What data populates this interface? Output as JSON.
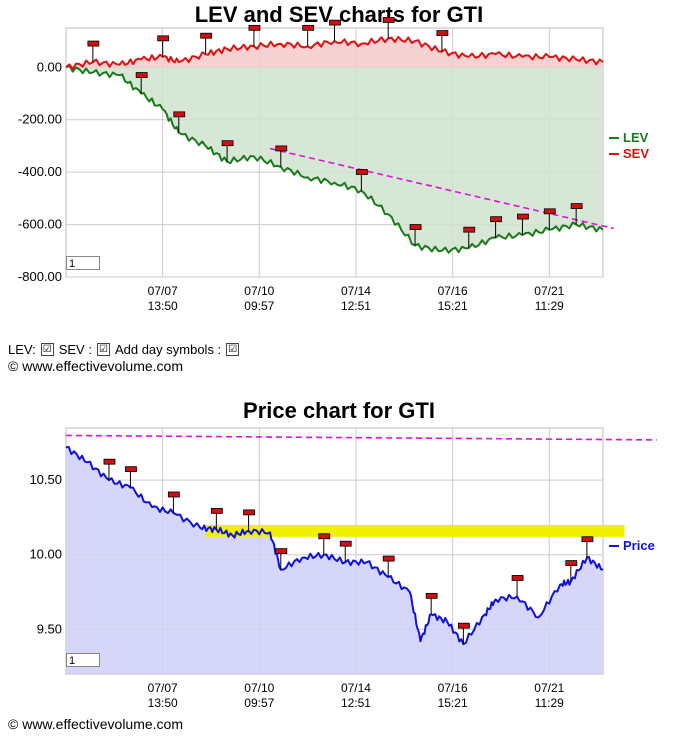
{
  "top_chart": {
    "title": "LEV and SEV charts for GTI",
    "zoom_value": "1"
  },
  "controls": {
    "lev_label": "LEV:",
    "sev_label": "SEV :",
    "day_symbols_label": "Add day symbols :",
    "lev_checked": "☑",
    "sev_checked": "☑",
    "day_checked": "☑"
  },
  "copyright_top": "© www.effectivevolume.com",
  "copyright_bottom": "© www.effectivevolume.com",
  "bottom_chart": {
    "title": "Price chart for GTI",
    "zoom_value": "1"
  },
  "colors": {
    "lev": "#1a7a1a",
    "lev_fill": "#cfe3cf",
    "sev": "#e01010",
    "sev_fill": "#f5c9c9",
    "trend": "#e010e0",
    "price": "#1010e0",
    "price_fill": "#cfd0f7",
    "band": "#f0f000",
    "marker": "#d01010"
  },
  "chart_data": [
    {
      "type": "line",
      "title": "LEV and SEV charts for GTI",
      "x_tick_labels": [
        [
          "07/07",
          "13:50"
        ],
        [
          "07/10",
          "09:57"
        ],
        [
          "07/14",
          "12:51"
        ],
        [
          "07/16",
          "15:21"
        ],
        [
          "07/21",
          "11:29"
        ]
      ],
      "y_tick_labels": [
        "0.00",
        "-200.00",
        "-400.00",
        "-600.00",
        "-800.00"
      ],
      "ylim": [
        -800,
        150
      ],
      "grid": true,
      "legend_position": "right",
      "x": [
        0,
        5,
        10,
        14,
        18,
        21,
        26,
        30,
        35,
        40,
        45,
        50,
        55,
        60,
        65,
        70,
        75,
        80,
        85,
        90,
        95,
        100
      ],
      "series": [
        {
          "name": "LEV",
          "values": [
            0,
            -20,
            -30,
            -100,
            -160,
            -250,
            -300,
            -360,
            -340,
            -380,
            -420,
            -440,
            -470,
            -560,
            -680,
            -700,
            -690,
            -650,
            -640,
            -620,
            -600,
            -620
          ]
        },
        {
          "name": "SEV",
          "values": [
            0,
            20,
            10,
            30,
            40,
            20,
            50,
            70,
            80,
            90,
            80,
            100,
            90,
            110,
            100,
            60,
            40,
            50,
            40,
            40,
            30,
            20
          ]
        }
      ],
      "trendline": {
        "from": {
          "x": 38,
          "y": -310
        },
        "to": {
          "x": 102,
          "y": -615
        }
      }
    },
    {
      "type": "area",
      "title": "Price chart for GTI",
      "x_tick_labels": [
        [
          "07/07",
          "13:50"
        ],
        [
          "07/10",
          "09:57"
        ],
        [
          "07/14",
          "12:51"
        ],
        [
          "07/16",
          "15:21"
        ],
        [
          "07/21",
          "11:29"
        ]
      ],
      "y_tick_labels": [
        "10.50",
        "10.00",
        "9.50"
      ],
      "ylim": [
        9.2,
        10.85
      ],
      "grid": true,
      "legend_position": "right",
      "x": [
        0,
        4,
        8,
        12,
        16,
        20,
        25,
        28,
        31,
        34,
        38,
        40,
        44,
        48,
        52,
        56,
        60,
        64,
        66,
        68,
        71,
        74,
        78,
        80,
        84,
        88,
        92,
        94,
        97,
        100
      ],
      "series": [
        {
          "name": "Price",
          "values": [
            10.72,
            10.62,
            10.5,
            10.45,
            10.32,
            10.28,
            10.18,
            10.17,
            10.13,
            10.16,
            10.15,
            9.9,
            9.98,
            10.0,
            9.95,
            9.95,
            9.85,
            9.75,
            9.42,
            9.6,
            9.55,
            9.4,
            9.6,
            9.7,
            9.72,
            9.58,
            9.8,
            9.82,
            9.98,
            9.9
          ]
        }
      ],
      "trendline": {
        "from": {
          "x": 0,
          "y": 10.8
        },
        "to": {
          "x": 110,
          "y": 10.77
        }
      },
      "band": {
        "x_from": 26,
        "x_to": 104,
        "y_low": 10.12,
        "y_high": 10.2
      }
    }
  ]
}
